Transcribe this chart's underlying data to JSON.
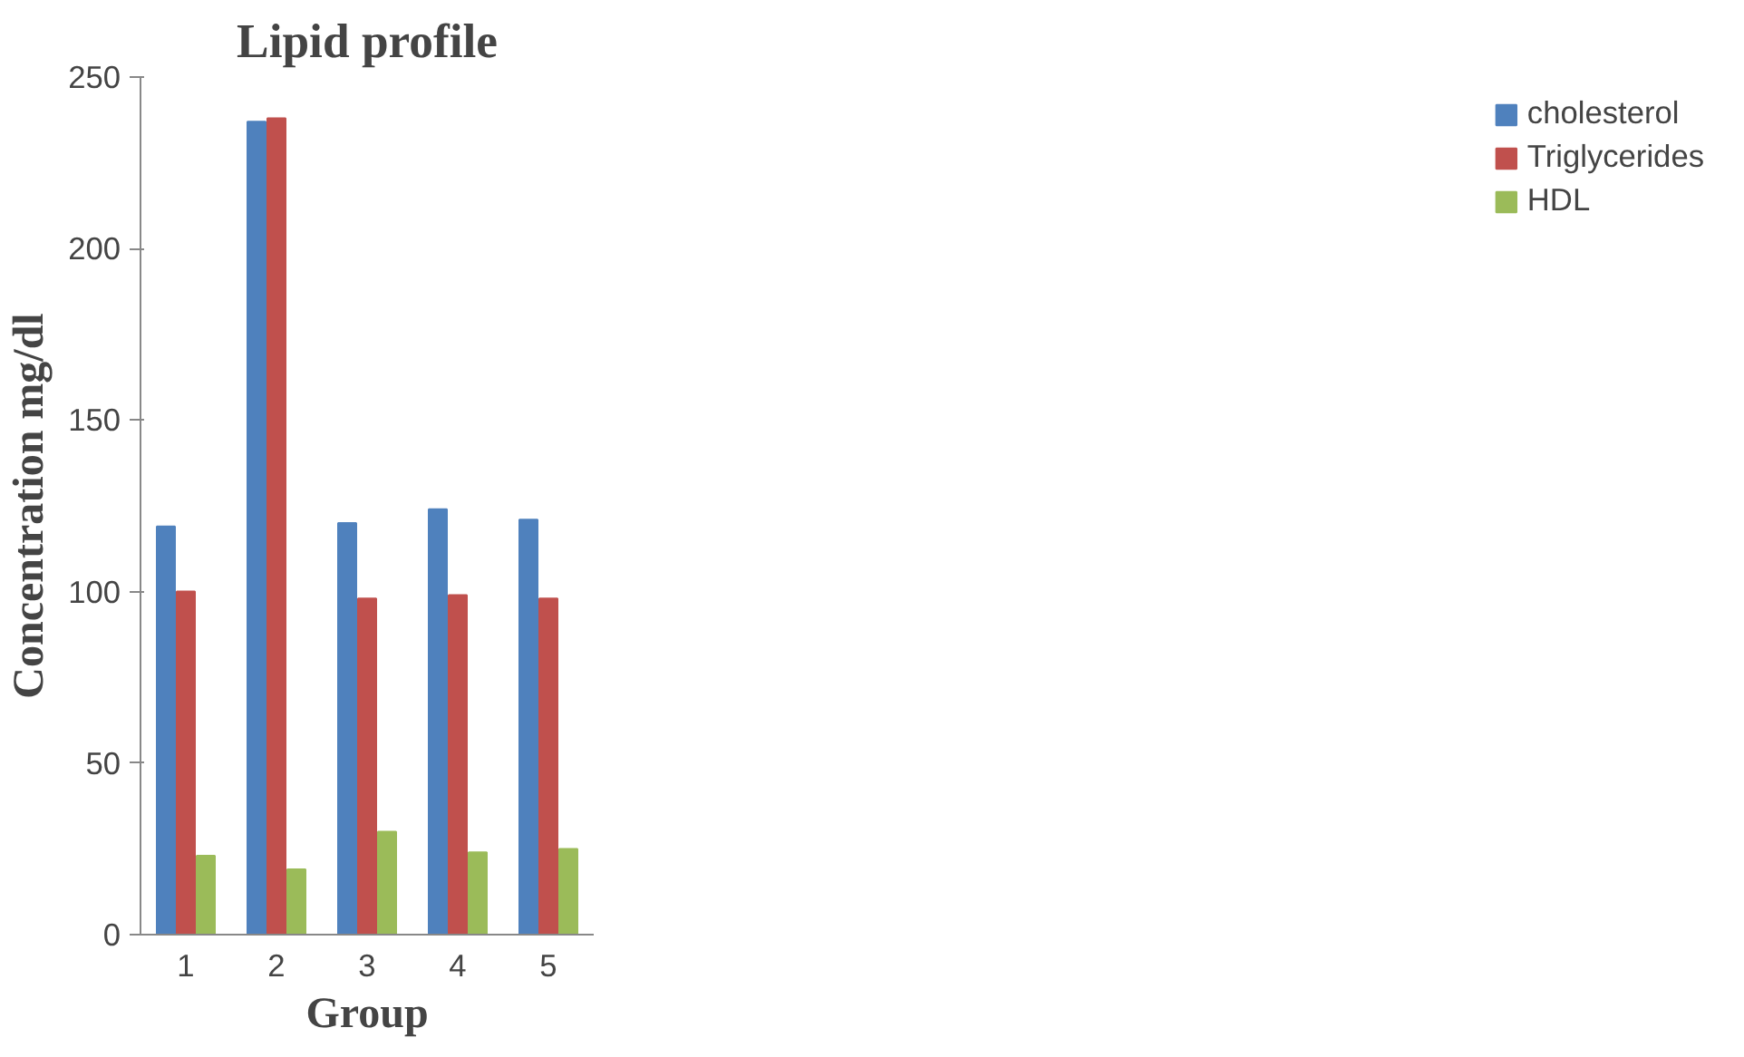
{
  "chart_data": {
    "type": "bar",
    "title": "Lipid profile",
    "xlabel": "Group",
    "ylabel": "Concentration mg/dl",
    "categories": [
      "1",
      "2",
      "3",
      "4",
      "5"
    ],
    "series": [
      {
        "name": "cholesterol",
        "color": "#4f81bd",
        "values": [
          119,
          237,
          120,
          124,
          121
        ]
      },
      {
        "name": "Triglycerides",
        "color": "#c0504d",
        "values": [
          100,
          238,
          98,
          99,
          98
        ]
      },
      {
        "name": "HDL",
        "color": "#9bbb59",
        "values": [
          23,
          19,
          30,
          24,
          25
        ]
      }
    ],
    "ylim": [
      0,
      250
    ],
    "yticks": [
      0,
      50,
      100,
      150,
      200,
      250
    ],
    "grid": false,
    "legend": "right"
  }
}
